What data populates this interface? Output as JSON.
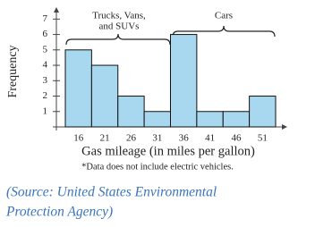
{
  "chart_data": {
    "type": "bar",
    "categories": [
      "16",
      "21",
      "26",
      "31",
      "36",
      "41",
      "46",
      "51"
    ],
    "values": [
      5,
      4,
      2,
      1,
      6,
      1,
      1,
      2
    ],
    "color": "#a8d8ef",
    "ylim": [
      0,
      7.6
    ],
    "yticks": [
      1,
      2,
      3,
      4,
      5,
      6,
      7
    ],
    "ylabel": "Frequency",
    "xlabel": "Gas mileage (in miles per gallon)",
    "annotations": [
      {
        "lines": [
          "Trucks, Vans,",
          "and SUVs"
        ]
      },
      {
        "lines": [
          "Cars"
        ]
      }
    ],
    "footnote": "*Data does not include electric vehicles.",
    "source": [
      "(Source: United States Environmental",
      "Protection Agency)"
    ]
  }
}
